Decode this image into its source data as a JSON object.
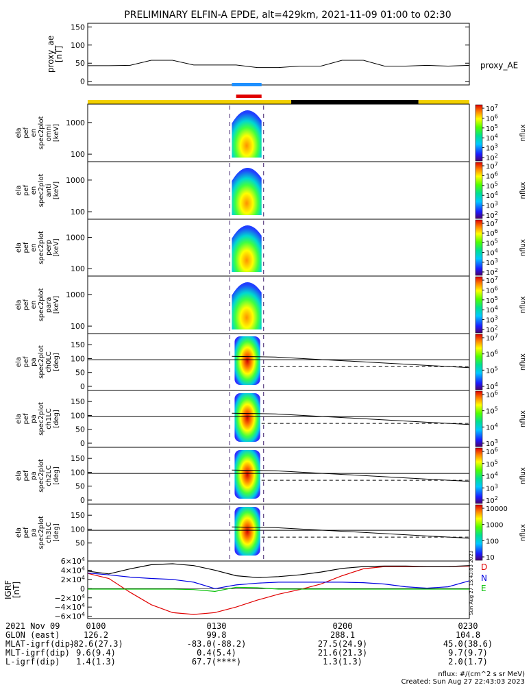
{
  "title": "PRELIMINARY ELFIN-A EPDE, alt=429km, 2021-11-09 01:00 to 02:30",
  "chart_data": [
    {
      "type": "line",
      "panel": "proxy_ae",
      "ylabel": [
        "proxy_ae",
        "[nT]"
      ],
      "ylim": [
        -10,
        160
      ],
      "yticks": [
        "150",
        "100",
        "50",
        "0"
      ],
      "series": [
        {
          "name": "proxy_AE",
          "x": [
            0,
            5,
            10,
            15,
            20,
            25,
            30,
            35,
            40,
            45,
            50,
            55,
            60,
            65,
            70,
            75,
            80,
            85,
            90
          ],
          "values": [
            43,
            43,
            44,
            58,
            58,
            45,
            45,
            45,
            38,
            38,
            42,
            42,
            58,
            58,
            42,
            42,
            44,
            42,
            44
          ]
        }
      ]
    },
    {
      "type": "heatmap",
      "panel": "spec2plot omni",
      "ylabel": [
        "ela",
        "pef",
        "en",
        "spec2plot",
        "omni",
        "[keV]"
      ],
      "ytick_labels": [
        "1000",
        "100"
      ],
      "colorbar_labels": [
        "10^7",
        "10^6",
        "10^5",
        "10^4",
        "10^3",
        "10^2"
      ],
      "zlabel": "nflux",
      "x_range_min": [
        34,
        41
      ]
    },
    {
      "type": "heatmap",
      "panel": "spec2plot anti",
      "ylabel": [
        "ela",
        "pef",
        "en",
        "spec2plot",
        "anti",
        "[keV]"
      ],
      "ytick_labels": [
        "1000",
        "100"
      ],
      "colorbar_labels": [
        "10^7",
        "10^6",
        "10^5",
        "10^4",
        "10^3",
        "10^2"
      ],
      "zlabel": "nflux",
      "x_range_min": [
        34,
        41
      ]
    },
    {
      "type": "heatmap",
      "panel": "spec2plot perp",
      "ylabel": [
        "ela",
        "pef",
        "en",
        "spec2plot",
        "perp",
        "[keV]"
      ],
      "ytick_labels": [
        "1000",
        "100"
      ],
      "colorbar_labels": [
        "10^7",
        "10^6",
        "10^5",
        "10^4",
        "10^3",
        "10^2"
      ],
      "zlabel": "nflux",
      "x_range_min": [
        34,
        41
      ]
    },
    {
      "type": "heatmap",
      "panel": "spec2plot para",
      "ylabel": [
        "ela",
        "pef",
        "en",
        "spec2plot",
        "para",
        "[keV]"
      ],
      "ytick_labels": [
        "1000",
        "100"
      ],
      "colorbar_labels": [
        "10^7",
        "10^6",
        "10^5",
        "10^4",
        "10^3",
        "10^2"
      ],
      "zlabel": "nflux",
      "x_range_min": [
        34,
        41
      ]
    },
    {
      "type": "heatmap",
      "panel": "spec2plot ch0LC",
      "ylabel": [
        "ela",
        "pef",
        "pa",
        "spec2plot",
        "ch0LC",
        "[deg]"
      ],
      "yticks": [
        "150",
        "100",
        "50",
        "0"
      ],
      "colorbar_labels": [
        "10^7",
        "10^6",
        "10^5",
        "10^4"
      ],
      "zlabel": "nflux",
      "x_range_min": [
        34,
        41
      ]
    },
    {
      "type": "heatmap",
      "panel": "spec2plot ch1LC",
      "ylabel": [
        "ela",
        "pef",
        "pa",
        "spec2plot",
        "ch1LC",
        "[deg]"
      ],
      "yticks": [
        "150",
        "100",
        "50",
        "0"
      ],
      "colorbar_labels": [
        "10^6",
        "10^5",
        "10^4",
        "10^3"
      ],
      "zlabel": "nflux",
      "x_range_min": [
        34,
        41
      ]
    },
    {
      "type": "heatmap",
      "panel": "spec2plot ch2LC",
      "ylabel": [
        "ela",
        "pef",
        "pa",
        "spec2plot",
        "ch2LC",
        "[deg]"
      ],
      "yticks": [
        "150",
        "100",
        "50",
        "0"
      ],
      "colorbar_labels": [
        "10^6",
        "10^5",
        "10^4",
        "10^3",
        "10^2"
      ],
      "zlabel": "nflux",
      "x_range_min": [
        34,
        41
      ]
    },
    {
      "type": "heatmap",
      "panel": "spec2plot ch3LC",
      "ylabel": [
        "ela",
        "pef",
        "pa",
        "spec2plot",
        "ch3LC",
        "[deg]"
      ],
      "yticks": [
        "150",
        "100",
        "50"
      ],
      "colorbar_labels": [
        "10000",
        "1000",
        "100",
        "10"
      ],
      "zlabel": "nflux",
      "x_range_min": [
        34,
        41
      ]
    },
    {
      "type": "line",
      "panel": "IGRF",
      "ylabel": [
        "IGRF",
        "[nT]"
      ],
      "ylim": [
        -65000,
        60000
      ],
      "yticks": [
        "6×10^4",
        "4×10^4",
        "2×10^4",
        "0",
        "−2×10^4",
        "−4×10^4",
        "−6×10^4"
      ],
      "series": [
        {
          "name": "D",
          "color": "#e00000",
          "x": [
            0,
            5,
            10,
            15,
            20,
            25,
            30,
            35,
            40,
            45,
            50,
            55,
            60,
            65,
            70,
            75,
            80,
            85,
            90
          ],
          "values": [
            33000,
            22000,
            -8000,
            -35000,
            -52000,
            -56000,
            -52000,
            -40000,
            -25000,
            -12000,
            -2000,
            10000,
            28000,
            43000,
            48000,
            48000,
            48000,
            48000,
            49000
          ]
        },
        {
          "name": "N",
          "color": "#0000e0",
          "x": [
            0,
            5,
            10,
            15,
            20,
            25,
            30,
            35,
            40,
            45,
            50,
            55,
            60,
            65,
            70,
            75,
            80,
            85,
            90
          ],
          "values": [
            34000,
            30000,
            25000,
            22000,
            20000,
            14000,
            0,
            8000,
            12000,
            14000,
            14000,
            14000,
            14000,
            13000,
            10000,
            4000,
            1000,
            4000,
            17000
          ]
        },
        {
          "name": "E",
          "color": "#00c000",
          "x": [
            0,
            5,
            10,
            15,
            20,
            25,
            30,
            35,
            40,
            45,
            50,
            55,
            60,
            65,
            70,
            75,
            80,
            85,
            90
          ],
          "values": [
            -1000,
            -1000,
            -1000,
            -1000,
            -1000,
            -2000,
            -6000,
            3000,
            2000,
            -1000,
            -1000,
            -1000,
            -1000,
            -1000,
            -1000,
            -1000,
            -1000,
            -1000,
            -1000
          ]
        },
        {
          "name": "total",
          "color": "#000000",
          "x": [
            0,
            5,
            10,
            15,
            20,
            25,
            30,
            35,
            40,
            45,
            50,
            55,
            60,
            65,
            70,
            75,
            80,
            85,
            90
          ],
          "values": [
            38000,
            32000,
            43000,
            52000,
            54000,
            50000,
            40000,
            28000,
            24000,
            26000,
            30000,
            36000,
            44000,
            48000,
            49000,
            49000,
            48000,
            48000,
            50000
          ]
        }
      ]
    }
  ],
  "timeline": {
    "range_min": [
      0,
      90
    ],
    "yellow_black_bar": [
      {
        "from": 0,
        "to": 48,
        "color": "#f2d000"
      },
      {
        "from": 48,
        "to": 78,
        "color": "#000000"
      },
      {
        "from": 78,
        "to": 90,
        "color": "#f2d000"
      }
    ],
    "blue_bar_min": [
      34,
      41
    ],
    "red_bar_min": [
      35,
      41
    ]
  },
  "footer": {
    "row_labels": [
      "2021 Nov 09",
      "GLON (east)",
      "MLAT-igrf(dip)",
      "MLT-igrf(dip)",
      "L-igrf(dip)"
    ],
    "columns": [
      {
        "time": "0100",
        "values": [
          "126.2",
          "-82.6(27.3)",
          "9.6(9.4)",
          "1.4(1.3)"
        ]
      },
      {
        "time": "0130",
        "values": [
          "99.8",
          "-83.0(-88.2)",
          "0.4(5.4)",
          "67.7(****)"
        ]
      },
      {
        "time": "0200",
        "values": [
          "288.1",
          "27.5(24.9)",
          "21.6(21.3)",
          "1.3(1.3)"
        ]
      },
      {
        "time": "0230",
        "values": [
          "104.8",
          "45.0(38.6)",
          "9.7(9.7)",
          "2.0(1.7)"
        ]
      }
    ],
    "units_note": "nflux: #/(cm^2 s sr MeV)",
    "created": "Created: Sun Aug 27 22:43:03 2023",
    "side_stamp": "Sun Aug 27 15:43:03 2023"
  },
  "legend": {
    "proxy_ae": "proxy_AE",
    "D": "D",
    "N": "N",
    "E": "E"
  }
}
